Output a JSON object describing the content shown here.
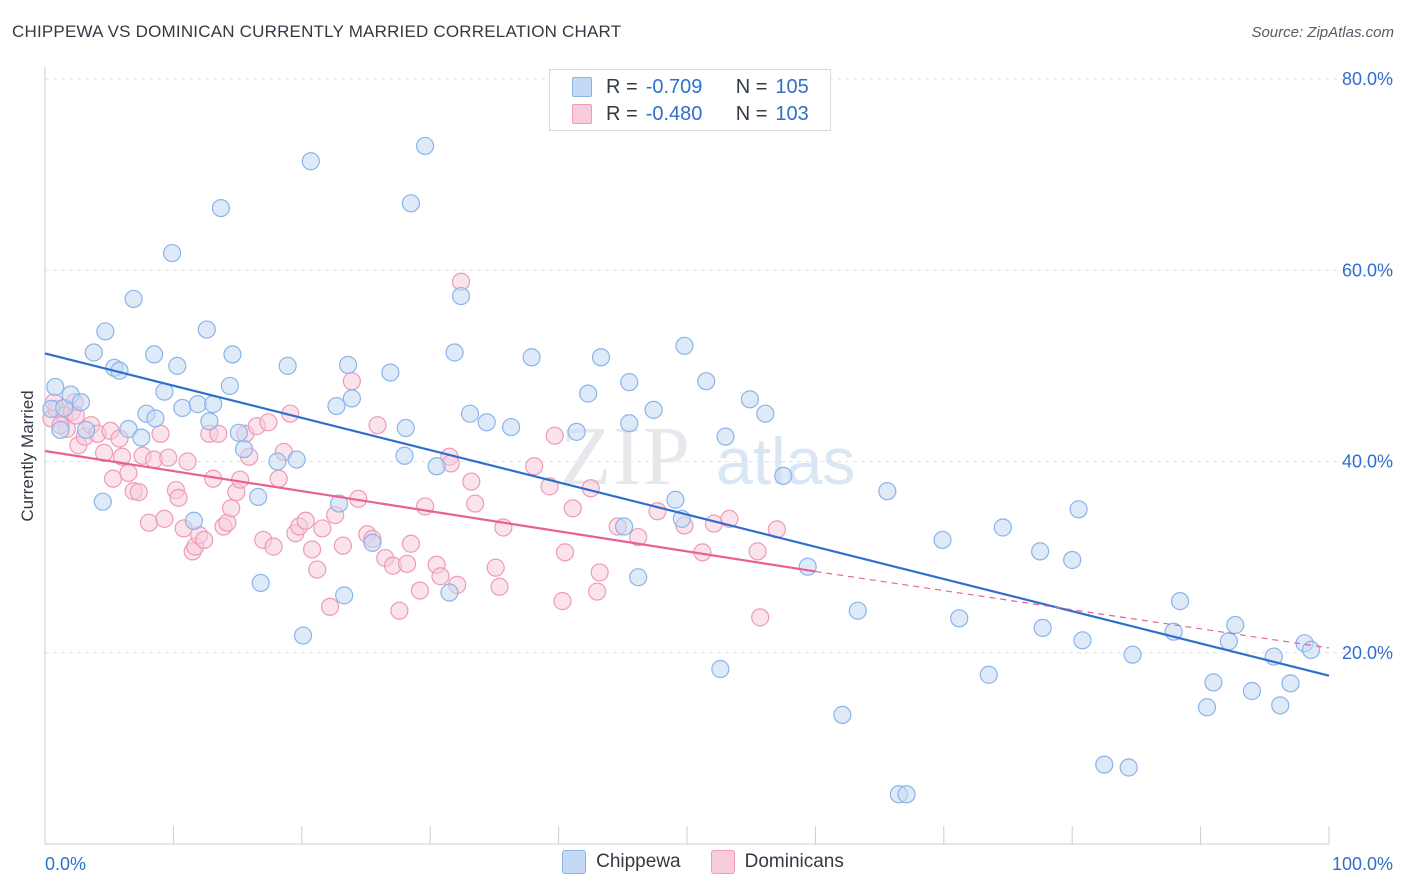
{
  "header": {
    "title": "CHIPPEWA VS DOMINICAN CURRENTLY MARRIED CORRELATION CHART",
    "source": "Source: ZipAtlas.com"
  },
  "legend": {
    "r_label": "R =",
    "n_label": "N =",
    "series": [
      {
        "name": "Chippewa",
        "r": "-0.709",
        "n": "105",
        "color": "#8ab4ea",
        "fill": "#c4d9f4"
      },
      {
        "name": "Dominicans",
        "r": "-0.480",
        "n": "103",
        "color": "#ef9ab7",
        "fill": "#f8ccdc"
      }
    ]
  },
  "watermark": {
    "zip": "ZIP",
    "atlas": "atlas"
  },
  "colors": {
    "blue_line": "#2f6fcc",
    "pink_line": "#e8628f",
    "axis_text": "#2f6fcc",
    "grid": "#dfe2e6"
  },
  "chart_data": {
    "type": "scatter",
    "title": "CHIPPEWA VS DOMINICAN CURRENTLY MARRIED CORRELATION CHART",
    "xlabel": "",
    "ylabel": "Currently Married",
    "xlim": [
      0,
      100
    ],
    "ylim": [
      0,
      80
    ],
    "x_tick_labels": [
      "0.0%",
      "100.0%"
    ],
    "y_ticks": [
      20,
      40,
      60,
      80
    ],
    "y_tick_labels": [
      "20.0%",
      "40.0%",
      "60.0%",
      "80.0%"
    ],
    "grid": true,
    "legend_position": "top-center",
    "series": [
      {
        "name": "Chippewa",
        "trend": {
          "x0": 0,
          "y0": 51.3,
          "x1": 100,
          "y1": 17.6
        },
        "points": [
          [
            0.5,
            45.5
          ],
          [
            0.8,
            47.8
          ],
          [
            1.2,
            43.3
          ],
          [
            1.5,
            45.6
          ],
          [
            2.0,
            47.0
          ],
          [
            2.8,
            46.2
          ],
          [
            3.2,
            43.3
          ],
          [
            3.8,
            51.4
          ],
          [
            4.5,
            35.8
          ],
          [
            4.7,
            53.6
          ],
          [
            5.4,
            49.8
          ],
          [
            5.8,
            49.5
          ],
          [
            6.5,
            43.4
          ],
          [
            6.9,
            57.0
          ],
          [
            7.5,
            42.5
          ],
          [
            7.9,
            45.0
          ],
          [
            8.5,
            51.2
          ],
          [
            8.6,
            44.5
          ],
          [
            9.3,
            47.3
          ],
          [
            9.9,
            61.8
          ],
          [
            10.3,
            50.0
          ],
          [
            10.7,
            45.6
          ],
          [
            11.6,
            33.8
          ],
          [
            11.9,
            46.0
          ],
          [
            12.6,
            53.8
          ],
          [
            12.8,
            44.2
          ],
          [
            13.1,
            46.0
          ],
          [
            13.7,
            66.5
          ],
          [
            14.4,
            47.9
          ],
          [
            14.6,
            51.2
          ],
          [
            15.1,
            43.0
          ],
          [
            15.5,
            41.3
          ],
          [
            16.6,
            36.3
          ],
          [
            16.8,
            27.3
          ],
          [
            18.1,
            40.0
          ],
          [
            18.9,
            50.0
          ],
          [
            19.6,
            40.2
          ],
          [
            20.1,
            21.8
          ],
          [
            20.7,
            71.4
          ],
          [
            22.7,
            45.8
          ],
          [
            22.9,
            35.6
          ],
          [
            23.3,
            26.0
          ],
          [
            23.6,
            50.1
          ],
          [
            23.9,
            46.6
          ],
          [
            25.5,
            31.5
          ],
          [
            26.9,
            49.3
          ],
          [
            28.0,
            40.6
          ],
          [
            28.1,
            43.5
          ],
          [
            28.5,
            67.0
          ],
          [
            29.6,
            73.0
          ],
          [
            30.5,
            39.5
          ],
          [
            31.5,
            26.3
          ],
          [
            31.9,
            51.4
          ],
          [
            32.4,
            57.3
          ],
          [
            33.1,
            45.0
          ],
          [
            34.4,
            44.1
          ],
          [
            36.3,
            43.6
          ],
          [
            37.9,
            50.9
          ],
          [
            41.4,
            43.1
          ],
          [
            42.3,
            47.1
          ],
          [
            43.3,
            50.9
          ],
          [
            45.1,
            33.2
          ],
          [
            45.5,
            48.3
          ],
          [
            46.2,
            27.9
          ],
          [
            47.4,
            45.4
          ],
          [
            49.1,
            36.0
          ],
          [
            49.6,
            34.0
          ],
          [
            49.8,
            52.1
          ],
          [
            51.5,
            48.4
          ],
          [
            53.0,
            42.6
          ],
          [
            54.9,
            46.5
          ],
          [
            56.1,
            45.0
          ],
          [
            57.5,
            38.5
          ],
          [
            59.4,
            29.0
          ],
          [
            62.1,
            13.5
          ],
          [
            63.3,
            24.4
          ],
          [
            65.6,
            36.9
          ],
          [
            66.5,
            5.2
          ],
          [
            67.1,
            5.2
          ],
          [
            69.9,
            31.8
          ],
          [
            71.2,
            23.6
          ],
          [
            73.5,
            17.7
          ],
          [
            74.6,
            33.1
          ],
          [
            77.5,
            30.6
          ],
          [
            77.7,
            22.6
          ],
          [
            80.0,
            29.7
          ],
          [
            80.5,
            35.0
          ],
          [
            80.8,
            21.3
          ],
          [
            82.5,
            8.3
          ],
          [
            84.4,
            8.0
          ],
          [
            84.7,
            19.8
          ],
          [
            87.9,
            22.2
          ],
          [
            88.4,
            25.4
          ],
          [
            90.5,
            14.3
          ],
          [
            91.0,
            16.9
          ],
          [
            92.2,
            21.2
          ],
          [
            92.7,
            22.9
          ],
          [
            94.0,
            16.0
          ],
          [
            95.7,
            19.6
          ],
          [
            96.2,
            14.5
          ],
          [
            97.0,
            16.8
          ],
          [
            98.1,
            21.0
          ],
          [
            98.6,
            20.3
          ],
          [
            52.6,
            18.3
          ],
          [
            45.5,
            44.0
          ]
        ]
      },
      {
        "name": "Dominicans",
        "trend_solid": {
          "x0": 0,
          "y0": 41.1,
          "x1": 60,
          "y1": 28.5
        },
        "trend_dashed": {
          "x0": 60,
          "y0": 28.5,
          "x1": 100,
          "y1": 20.5
        },
        "points": [
          [
            0.5,
            44.5
          ],
          [
            0.9,
            45.5
          ],
          [
            1.5,
            44.8
          ],
          [
            1.7,
            43.4
          ],
          [
            2.1,
            45.2
          ],
          [
            2.3,
            46.2
          ],
          [
            2.6,
            41.7
          ],
          [
            3.1,
            42.6
          ],
          [
            3.6,
            43.8
          ],
          [
            4.1,
            42.9
          ],
          [
            4.6,
            40.9
          ],
          [
            5.1,
            43.2
          ],
          [
            5.3,
            38.2
          ],
          [
            5.8,
            42.4
          ],
          [
            6.0,
            40.5
          ],
          [
            6.5,
            38.8
          ],
          [
            6.9,
            36.9
          ],
          [
            7.3,
            36.8
          ],
          [
            7.6,
            40.6
          ],
          [
            8.1,
            33.6
          ],
          [
            8.5,
            40.2
          ],
          [
            9.0,
            42.9
          ],
          [
            9.3,
            34.0
          ],
          [
            9.6,
            40.4
          ],
          [
            10.2,
            37.0
          ],
          [
            10.4,
            36.2
          ],
          [
            10.8,
            33.0
          ],
          [
            11.1,
            40.0
          ],
          [
            11.5,
            30.6
          ],
          [
            11.7,
            31.1
          ],
          [
            12.0,
            32.3
          ],
          [
            12.4,
            31.8
          ],
          [
            12.8,
            42.9
          ],
          [
            13.1,
            38.2
          ],
          [
            13.5,
            42.9
          ],
          [
            13.9,
            33.2
          ],
          [
            14.2,
            33.6
          ],
          [
            14.5,
            35.1
          ],
          [
            14.9,
            36.8
          ],
          [
            15.2,
            38.1
          ],
          [
            15.6,
            42.9
          ],
          [
            15.9,
            40.5
          ],
          [
            16.5,
            43.7
          ],
          [
            17.0,
            31.8
          ],
          [
            17.4,
            44.1
          ],
          [
            17.8,
            31.1
          ],
          [
            18.2,
            38.2
          ],
          [
            18.6,
            41.0
          ],
          [
            19.1,
            45.0
          ],
          [
            19.5,
            32.5
          ],
          [
            19.8,
            33.2
          ],
          [
            20.3,
            33.8
          ],
          [
            20.8,
            30.8
          ],
          [
            21.2,
            28.7
          ],
          [
            21.6,
            33.0
          ],
          [
            22.2,
            24.8
          ],
          [
            22.6,
            34.4
          ],
          [
            23.2,
            31.2
          ],
          [
            23.9,
            48.4
          ],
          [
            24.4,
            36.1
          ],
          [
            25.1,
            32.4
          ],
          [
            25.5,
            31.9
          ],
          [
            25.9,
            43.8
          ],
          [
            26.5,
            29.9
          ],
          [
            27.1,
            29.1
          ],
          [
            27.6,
            24.4
          ],
          [
            28.2,
            29.3
          ],
          [
            28.5,
            31.4
          ],
          [
            29.2,
            26.5
          ],
          [
            29.6,
            35.3
          ],
          [
            30.5,
            29.2
          ],
          [
            30.8,
            28.0
          ],
          [
            31.5,
            40.5
          ],
          [
            31.6,
            39.8
          ],
          [
            32.1,
            27.1
          ],
          [
            32.4,
            58.8
          ],
          [
            33.2,
            37.9
          ],
          [
            33.5,
            35.6
          ],
          [
            35.1,
            28.9
          ],
          [
            35.4,
            26.9
          ],
          [
            35.7,
            33.1
          ],
          [
            38.1,
            39.5
          ],
          [
            39.3,
            37.4
          ],
          [
            39.7,
            42.7
          ],
          [
            40.5,
            30.5
          ],
          [
            40.3,
            25.4
          ],
          [
            41.1,
            35.1
          ],
          [
            42.5,
            37.2
          ],
          [
            43.2,
            28.4
          ],
          [
            43.0,
            26.4
          ],
          [
            44.6,
            33.2
          ],
          [
            46.2,
            32.1
          ],
          [
            47.7,
            34.8
          ],
          [
            49.8,
            33.3
          ],
          [
            51.2,
            30.5
          ],
          [
            52.1,
            33.5
          ],
          [
            53.3,
            34.0
          ],
          [
            55.7,
            23.7
          ],
          [
            57.0,
            32.9
          ],
          [
            55.5,
            30.6
          ],
          [
            0.7,
            46.2
          ],
          [
            1.2,
            43.8
          ],
          [
            2.4,
            44.8
          ]
        ]
      }
    ]
  },
  "bottom_legend": [
    "Chippewa",
    "Dominicans"
  ]
}
